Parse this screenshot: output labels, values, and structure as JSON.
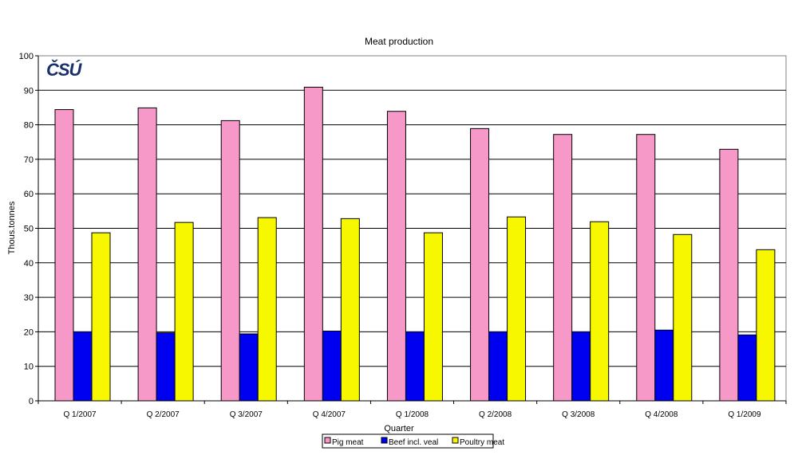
{
  "chart_data": {
    "type": "bar",
    "title": "Meat production",
    "xlabel": "Quarter",
    "ylabel": "Thous.tonnes",
    "ylim": [
      0,
      100
    ],
    "yticks": [
      0,
      10,
      20,
      30,
      40,
      50,
      60,
      70,
      80,
      90,
      100
    ],
    "grid": true,
    "legend": "bottom",
    "categories": [
      "Q 1/2007",
      "Q 2/2007",
      "Q 3/2007",
      "Q 4/2007",
      "Q 1/2008",
      "Q 2/2008",
      "Q 3/2008",
      "Q 4/2008",
      "Q 1/2009"
    ],
    "series": [
      {
        "name": "Pig meat",
        "color": "#F799C8",
        "values": [
          84.4,
          84.9,
          81.2,
          90.9,
          83.9,
          78.9,
          77.2,
          77.2,
          72.9
        ]
      },
      {
        "name": "Beef incl. veal",
        "color": "#0000F0",
        "values": [
          20.0,
          19.7,
          19.4,
          20.2,
          20.0,
          20.0,
          20.0,
          20.5,
          19.1
        ]
      },
      {
        "name": "Poultry meat",
        "color": "#F7F700",
        "values": [
          48.7,
          51.7,
          53.1,
          52.8,
          48.7,
          53.3,
          51.9,
          48.2,
          43.8
        ]
      }
    ]
  },
  "logo": {
    "text": "ČSÚ",
    "color": "#1A2F6B"
  }
}
